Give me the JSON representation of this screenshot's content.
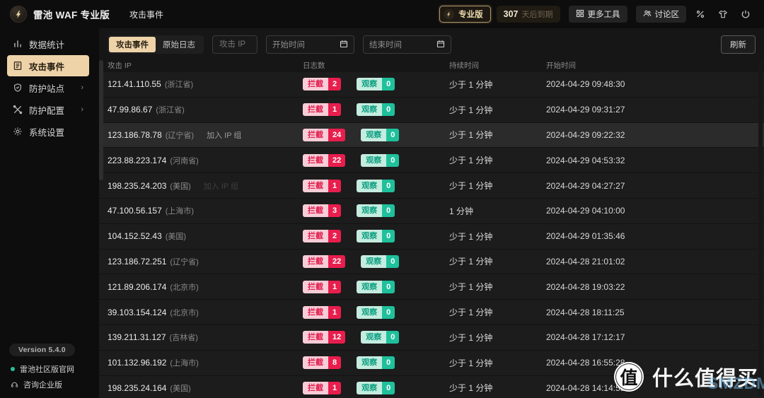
{
  "header": {
    "app_title": "雷池 WAF 专业版",
    "breadcrumb": "攻击事件",
    "pro_badge_label": "专业版",
    "expiry_days": "307",
    "expiry_text": "天后到期",
    "more_tools_label": "更多工具",
    "discussion_label": "讨论区",
    "icon_buttons": [
      "promo-icon",
      "theme-icon",
      "logout-icon"
    ]
  },
  "sidebar": {
    "items": [
      {
        "label": "数据统计",
        "icon": "bar-chart-icon",
        "active": false,
        "chevron": false
      },
      {
        "label": "攻击事件",
        "icon": "attack-event-icon",
        "active": true,
        "chevron": false
      },
      {
        "label": "防护站点",
        "icon": "shield-icon",
        "active": false,
        "chevron": true
      },
      {
        "label": "防护配置",
        "icon": "tools-icon",
        "active": false,
        "chevron": true
      },
      {
        "label": "系统设置",
        "icon": "gear-icon",
        "active": false,
        "chevron": false
      }
    ],
    "version": "Version 5.4.0",
    "links": [
      {
        "label": "雷池社区版官网",
        "icon": "dot-icon"
      },
      {
        "label": "咨询企业版",
        "icon": "headset-icon"
      }
    ]
  },
  "filters": {
    "tabs": [
      {
        "label": "攻击事件",
        "active": true
      },
      {
        "label": "原始日志",
        "active": false
      }
    ],
    "ip_placeholder": "攻击 IP",
    "start_time_placeholder": "开始时间",
    "end_time_placeholder": "结束时间",
    "refresh_label": "刷新"
  },
  "table": {
    "headers": [
      "攻击 IP",
      "日志数",
      "持续时间",
      "开始时间"
    ],
    "block_label": "拦截",
    "observe_label": "观察",
    "join_ip_group_label": "加入 IP 组",
    "rows": [
      {
        "ip": "121.41.110.55",
        "location": "(浙江省)",
        "block": 2,
        "observe": 0,
        "duration": "少于 1 分钟",
        "start": "2024-04-29 09:48:30",
        "join": "",
        "hover": false
      },
      {
        "ip": "47.99.86.67",
        "location": "(浙江省)",
        "block": 1,
        "observe": 0,
        "duration": "少于 1 分钟",
        "start": "2024-04-29 09:31:27",
        "join": "",
        "hover": false
      },
      {
        "ip": "123.186.78.78",
        "location": "(辽宁省)",
        "block": 24,
        "observe": 0,
        "duration": "少于 1 分钟",
        "start": "2024-04-29 09:22:32",
        "join": "visible",
        "hover": true
      },
      {
        "ip": "223.88.223.174",
        "location": "(河南省)",
        "block": 22,
        "observe": 0,
        "duration": "少于 1 分钟",
        "start": "2024-04-29 04:53:32",
        "join": "",
        "hover": false
      },
      {
        "ip": "198.235.24.203",
        "location": "(美国)",
        "block": 1,
        "observe": 0,
        "duration": "少于 1 分钟",
        "start": "2024-04-29 04:27:27",
        "join": "faint",
        "hover": false
      },
      {
        "ip": "47.100.56.157",
        "location": "(上海市)",
        "block": 3,
        "observe": 0,
        "duration": "1 分钟",
        "start": "2024-04-29 04:10:00",
        "join": "",
        "hover": false
      },
      {
        "ip": "104.152.52.43",
        "location": "(美国)",
        "block": 2,
        "observe": 0,
        "duration": "少于 1 分钟",
        "start": "2024-04-29 01:35:46",
        "join": "",
        "hover": false
      },
      {
        "ip": "123.186.72.251",
        "location": "(辽宁省)",
        "block": 22,
        "observe": 0,
        "duration": "少于 1 分钟",
        "start": "2024-04-28 21:01:02",
        "join": "",
        "hover": false
      },
      {
        "ip": "121.89.206.174",
        "location": "(北京市)",
        "block": 1,
        "observe": 0,
        "duration": "少于 1 分钟",
        "start": "2024-04-28 19:03:22",
        "join": "",
        "hover": false
      },
      {
        "ip": "39.103.154.124",
        "location": "(北京市)",
        "block": 1,
        "observe": 0,
        "duration": "少于 1 分钟",
        "start": "2024-04-28 18:11:25",
        "join": "",
        "hover": false
      },
      {
        "ip": "139.211.31.127",
        "location": "(吉林省)",
        "block": 12,
        "observe": 0,
        "duration": "少于 1 分钟",
        "start": "2024-04-28 17:12:17",
        "join": "",
        "hover": false
      },
      {
        "ip": "101.132.96.192",
        "location": "(上海市)",
        "block": 8,
        "observe": 0,
        "duration": "少于 1 分钟",
        "start": "2024-04-28 16:55:28",
        "join": "",
        "hover": false
      },
      {
        "ip": "198.235.24.164",
        "location": "(美国)",
        "block": 1,
        "observe": 0,
        "duration": "少于 1 分钟",
        "start": "2024-04-28 14:14:55",
        "join": "",
        "hover": false
      }
    ]
  },
  "watermark": {
    "badge": "值",
    "text": "什么值得买",
    "subtext": "SMZDM.NET"
  },
  "colors": {
    "accent_peach": "#eed3a9",
    "block_red": "#e81e4d",
    "block_red_light": "#f8cdd7",
    "observe_teal": "#1fc09c",
    "observe_teal_light": "#c4ecdf",
    "pro_border_gold": "#b69a6d"
  }
}
